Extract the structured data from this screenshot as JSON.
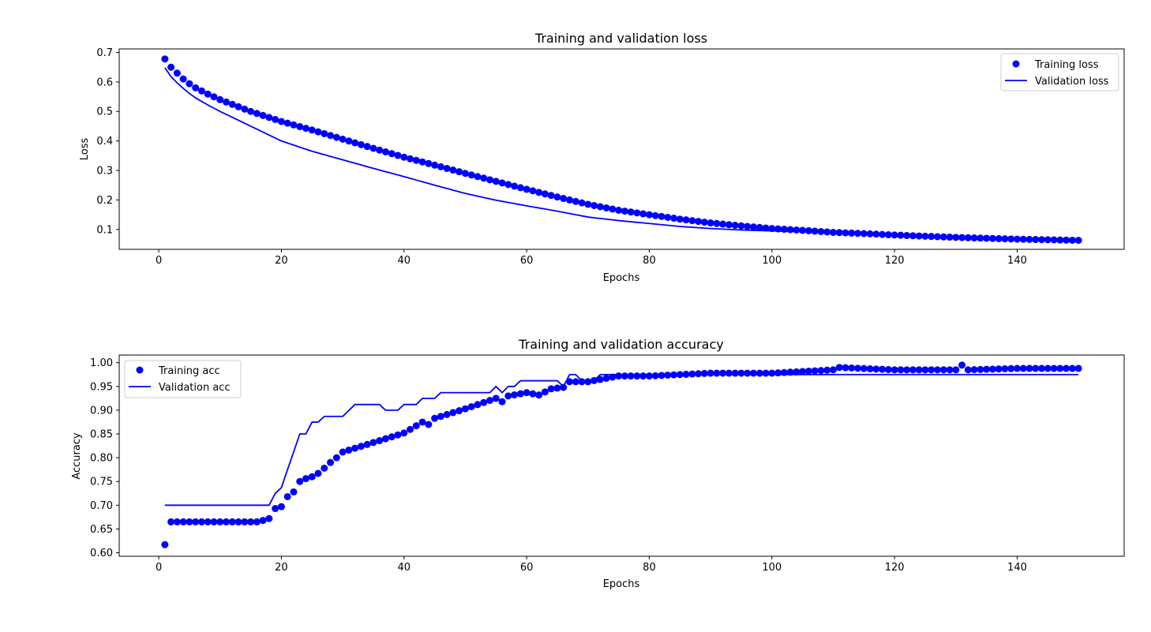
{
  "figure": {
    "background": "#ffffff",
    "series_color": "#0000ff"
  },
  "chart_data": [
    {
      "type": "scatter",
      "title": "Training and validation loss",
      "xlabel": "Epochs",
      "ylabel": "Loss",
      "xlim": [
        -6.45,
        157.45
      ],
      "ylim": [
        0.0325,
        0.712
      ],
      "xticks": [
        0,
        20,
        40,
        60,
        80,
        100,
        120,
        140
      ],
      "xtick_labels": [
        "0",
        "20",
        "40",
        "60",
        "80",
        "100",
        "120",
        "140"
      ],
      "yticks": [
        0.1,
        0.2,
        0.3,
        0.4,
        0.5,
        0.6,
        0.7
      ],
      "ytick_labels": [
        "0.1",
        "0.2",
        "0.3",
        "0.4",
        "0.5",
        "0.6",
        "0.7"
      ],
      "grid": false,
      "legend_position": "upper right",
      "x": {
        "start": 1,
        "end": 150,
        "step": 1
      },
      "series": [
        {
          "name": "Training loss",
          "style": "points",
          "color": "#0000ff",
          "anchors": [
            [
              1,
              0.678
            ],
            [
              2,
              0.65
            ],
            [
              3,
              0.63
            ],
            [
              4,
              0.61
            ],
            [
              5,
              0.594
            ],
            [
              6,
              0.58
            ],
            [
              8,
              0.559
            ],
            [
              10,
              0.54
            ],
            [
              15,
              0.5
            ],
            [
              20,
              0.466
            ],
            [
              25,
              0.437
            ],
            [
              30,
              0.406
            ],
            [
              35,
              0.375
            ],
            [
              40,
              0.345
            ],
            [
              45,
              0.318
            ],
            [
              50,
              0.29
            ],
            [
              55,
              0.263
            ],
            [
              60,
              0.236
            ],
            [
              65,
              0.21
            ],
            [
              70,
              0.185
            ],
            [
              75,
              0.165
            ],
            [
              80,
              0.15
            ],
            [
              85,
              0.135
            ],
            [
              90,
              0.122
            ],
            [
              95,
              0.112
            ],
            [
              100,
              0.103
            ],
            [
              105,
              0.097
            ],
            [
              110,
              0.09
            ],
            [
              115,
              0.086
            ],
            [
              120,
              0.081
            ],
            [
              125,
              0.077
            ],
            [
              130,
              0.073
            ],
            [
              135,
              0.07
            ],
            [
              140,
              0.067
            ],
            [
              145,
              0.065
            ],
            [
              150,
              0.063
            ]
          ]
        },
        {
          "name": "Validation loss",
          "style": "line",
          "color": "#0000ff",
          "anchors": [
            [
              1,
              0.648
            ],
            [
              2,
              0.618
            ],
            [
              3,
              0.597
            ],
            [
              4,
              0.578
            ],
            [
              5,
              0.561
            ],
            [
              6,
              0.546
            ],
            [
              8,
              0.522
            ],
            [
              10,
              0.5
            ],
            [
              15,
              0.45
            ],
            [
              20,
              0.4
            ],
            [
              25,
              0.365
            ],
            [
              30,
              0.336
            ],
            [
              35,
              0.307
            ],
            [
              40,
              0.279
            ],
            [
              45,
              0.25
            ],
            [
              50,
              0.222
            ],
            [
              55,
              0.199
            ],
            [
              60,
              0.18
            ],
            [
              65,
              0.162
            ],
            [
              70,
              0.142
            ],
            [
              75,
              0.13
            ],
            [
              80,
              0.12
            ],
            [
              85,
              0.11
            ],
            [
              90,
              0.103
            ],
            [
              95,
              0.098
            ],
            [
              100,
              0.095
            ],
            [
              105,
              0.092
            ],
            [
              110,
              0.089
            ],
            [
              115,
              0.086
            ],
            [
              120,
              0.082
            ],
            [
              125,
              0.078
            ],
            [
              130,
              0.074
            ],
            [
              135,
              0.071
            ],
            [
              140,
              0.068
            ],
            [
              145,
              0.064
            ],
            [
              150,
              0.062
            ]
          ]
        }
      ]
    },
    {
      "type": "scatter",
      "title": "Training and validation accuracy",
      "xlabel": "Epochs",
      "ylabel": "Accuracy",
      "xlim": [
        -6.45,
        157.45
      ],
      "ylim": [
        0.5926,
        1.0161
      ],
      "xticks": [
        0,
        20,
        40,
        60,
        80,
        100,
        120,
        140
      ],
      "xtick_labels": [
        "0",
        "20",
        "40",
        "60",
        "80",
        "100",
        "120",
        "140"
      ],
      "yticks": [
        0.6,
        0.65,
        0.7,
        0.75,
        0.8,
        0.85,
        0.9,
        0.95,
        1.0
      ],
      "ytick_labels": [
        "0.60",
        "0.65",
        "0.70",
        "0.75",
        "0.80",
        "0.85",
        "0.90",
        "0.95",
        "1.00"
      ],
      "grid": false,
      "legend_position": "upper left",
      "x": {
        "start": 1,
        "end": 150,
        "step": 1
      },
      "series": [
        {
          "name": "Training acc",
          "style": "points",
          "color": "#0000ff",
          "anchors": [
            [
              1,
              0.617
            ],
            [
              2,
              0.665
            ],
            [
              16,
              0.665
            ],
            [
              17,
              0.668
            ],
            [
              18,
              0.672
            ],
            [
              19,
              0.693
            ],
            [
              20,
              0.697
            ],
            [
              21,
              0.718
            ],
            [
              22,
              0.728
            ],
            [
              23,
              0.75
            ],
            [
              24,
              0.756
            ],
            [
              25,
              0.76
            ],
            [
              26,
              0.767
            ],
            [
              27,
              0.778
            ],
            [
              28,
              0.79
            ],
            [
              29,
              0.8
            ],
            [
              30,
              0.812
            ],
            [
              35,
              0.832
            ],
            [
              40,
              0.852
            ],
            [
              43,
              0.875
            ],
            [
              44,
              0.87
            ],
            [
              45,
              0.883
            ],
            [
              50,
              0.903
            ],
            [
              55,
              0.925
            ],
            [
              56,
              0.918
            ],
            [
              57,
              0.93
            ],
            [
              60,
              0.937
            ],
            [
              62,
              0.932
            ],
            [
              64,
              0.945
            ],
            [
              66,
              0.948
            ],
            [
              67,
              0.96
            ],
            [
              70,
              0.96
            ],
            [
              75,
              0.972
            ],
            [
              80,
              0.972
            ],
            [
              90,
              0.978
            ],
            [
              100,
              0.978
            ],
            [
              110,
              0.985
            ],
            [
              111,
              0.99
            ],
            [
              120,
              0.985
            ],
            [
              130,
              0.985
            ],
            [
              131,
              0.995
            ],
            [
              132,
              0.985
            ],
            [
              140,
              0.988
            ],
            [
              150,
              0.988
            ]
          ]
        },
        {
          "name": "Validation acc",
          "style": "line",
          "color": "#0000ff",
          "anchors": [
            [
              1,
              0.7
            ],
            [
              18,
              0.7
            ],
            [
              19,
              0.725
            ],
            [
              20,
              0.737
            ],
            [
              21,
              0.775
            ],
            [
              22,
              0.812
            ],
            [
              23,
              0.85
            ],
            [
              24,
              0.85
            ],
            [
              25,
              0.875
            ],
            [
              26,
              0.875
            ],
            [
              27,
              0.887
            ],
            [
              30,
              0.887
            ],
            [
              32,
              0.912
            ],
            [
              36,
              0.912
            ],
            [
              37,
              0.9
            ],
            [
              39,
              0.9
            ],
            [
              40,
              0.912
            ],
            [
              42,
              0.912
            ],
            [
              43,
              0.925
            ],
            [
              45,
              0.925
            ],
            [
              46,
              0.937
            ],
            [
              54,
              0.937
            ],
            [
              55,
              0.95
            ],
            [
              56,
              0.937
            ],
            [
              57,
              0.95
            ],
            [
              58,
              0.95
            ],
            [
              59,
              0.962
            ],
            [
              65,
              0.962
            ],
            [
              66,
              0.95
            ],
            [
              67,
              0.975
            ],
            [
              68,
              0.975
            ],
            [
              69,
              0.962
            ],
            [
              71,
              0.962
            ],
            [
              72,
              0.975
            ],
            [
              79,
              0.975
            ],
            [
              80,
              0.975
            ],
            [
              110,
              0.975
            ],
            [
              150,
              0.975
            ]
          ]
        }
      ]
    }
  ]
}
